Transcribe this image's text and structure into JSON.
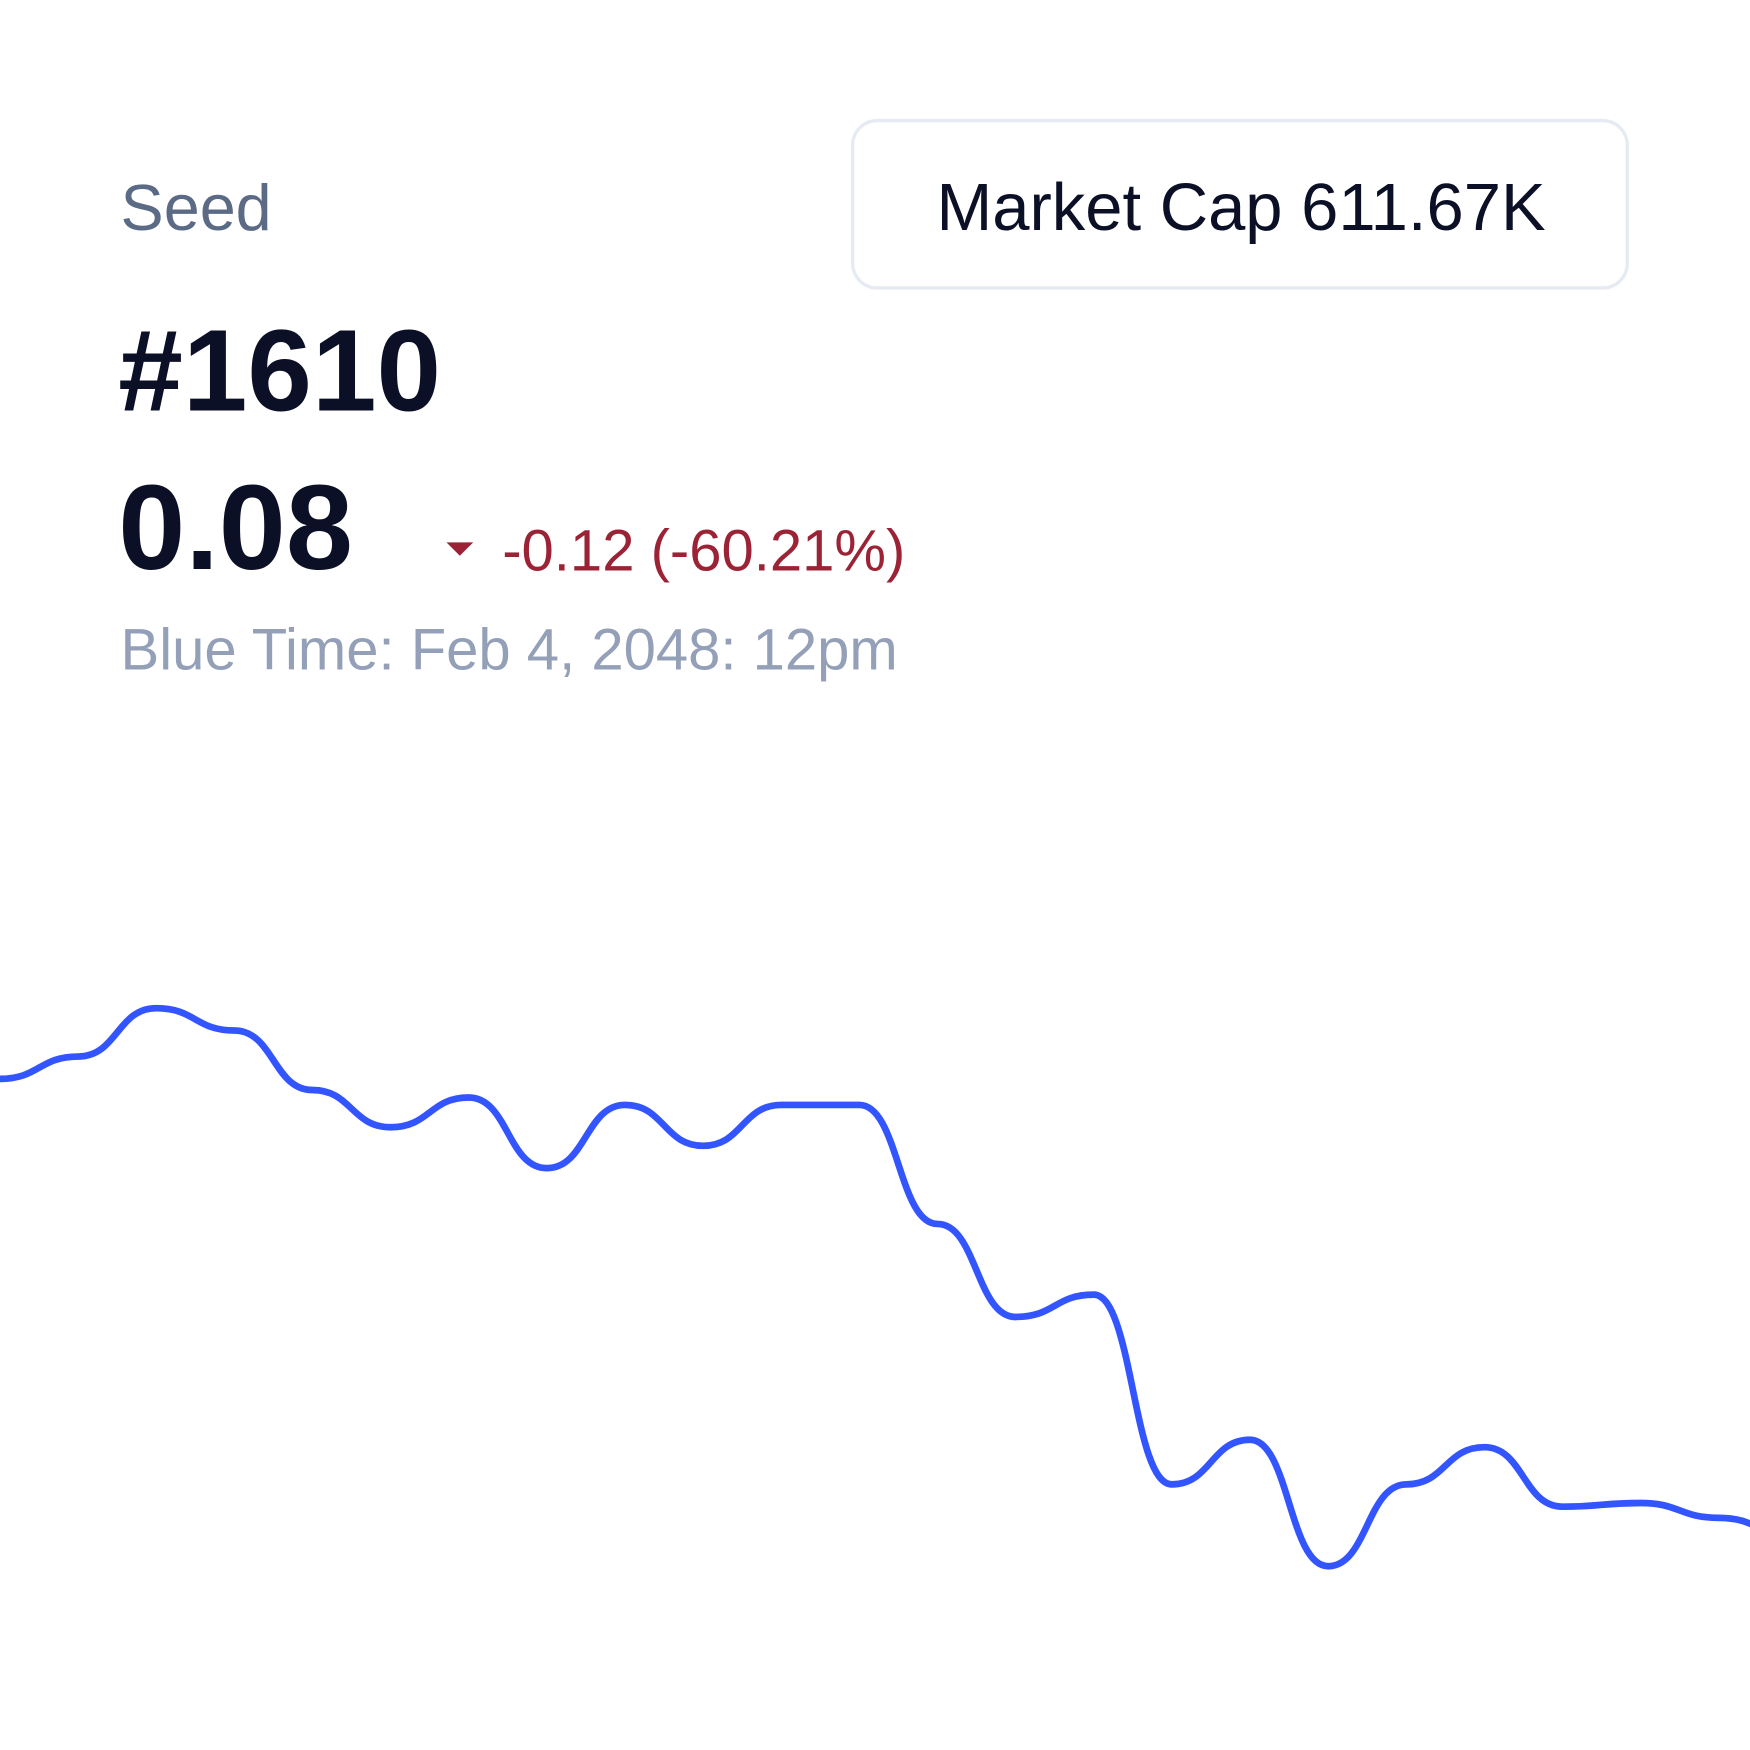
{
  "header": {
    "name": "Seed",
    "rank": "#1610",
    "price": "0.08",
    "change": "-0.12 (-60.21%)",
    "time": "Blue Time: Feb 4, 2048: 12pm",
    "market_cap": "Market Cap 611.67K"
  },
  "chart_data": {
    "type": "line",
    "color": "#3355ff",
    "values": [
      0.2,
      0.206,
      0.219,
      0.213,
      0.197,
      0.187,
      0.195,
      0.176,
      0.193,
      0.182,
      0.193,
      0.193,
      0.161,
      0.136,
      0.142,
      0.091,
      0.103,
      0.069,
      0.091,
      0.101,
      0.085,
      0.086,
      0.082,
      0.077
    ],
    "ylim": [
      0.04,
      0.28
    ]
  }
}
